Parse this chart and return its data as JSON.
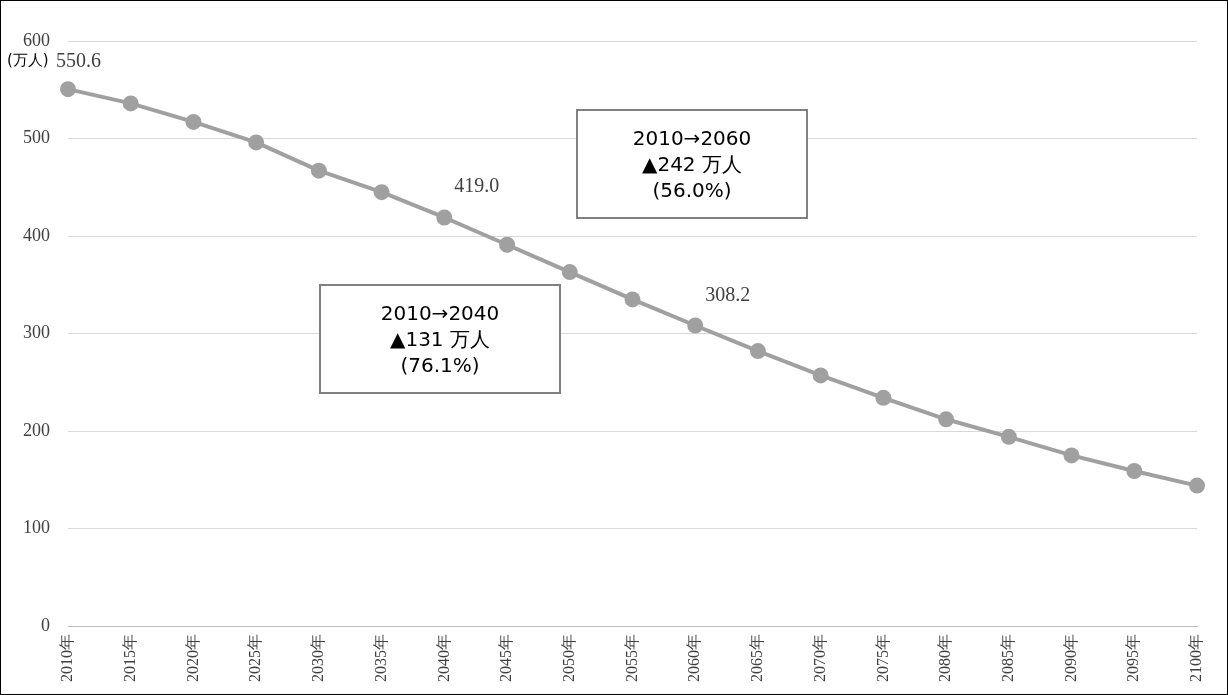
{
  "chart_data": {
    "type": "line",
    "ylabel": "(万人)",
    "categories": [
      "2010年",
      "2015年",
      "2020年",
      "2025年",
      "2030年",
      "2035年",
      "2040年",
      "2045年",
      "2050年",
      "2055年",
      "2060年",
      "2065年",
      "2070年",
      "2075年",
      "2080年",
      "2085年",
      "2090年",
      "2095年",
      "2100年"
    ],
    "series": [
      {
        "color": "#a0a0a0",
        "values": [
          550.6,
          536,
          517,
          496,
          467,
          445,
          419.0,
          391,
          363,
          335,
          308.2,
          282,
          257,
          234,
          212,
          194,
          175,
          159,
          144
        ],
        "value_labels": [
          "550.6",
          null,
          null,
          null,
          null,
          null,
          "419.0",
          null,
          null,
          null,
          "308.2",
          null,
          null,
          null,
          null,
          null,
          null,
          null,
          null
        ]
      }
    ],
    "ylim": [
      0,
      600
    ],
    "yticks": [
      0,
      100,
      200,
      300,
      400,
      500,
      600
    ],
    "grid": "y",
    "legend": false,
    "marker": "circle",
    "line_style": "solid",
    "annotations": [
      "2010→2060\n▲242 万人\n(56.0%)",
      "2010→2040\n▲131 万人\n(76.1%)"
    ]
  }
}
